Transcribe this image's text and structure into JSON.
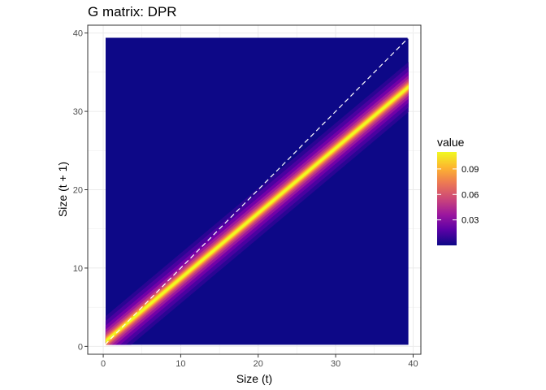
{
  "chart_data": {
    "type": "heatmap",
    "title": "G matrix: DPR",
    "xlabel": "Size (t)",
    "ylabel": "Size (t + 1)",
    "xlim": [
      -2,
      41
    ],
    "ylim": [
      -1,
      41
    ],
    "x_ticks": [
      0,
      10,
      20,
      30,
      40
    ],
    "y_ticks": [
      0,
      10,
      20,
      30,
      40
    ],
    "grid": true,
    "data_extent": {
      "x": [
        0.3,
        39.4
      ],
      "y": [
        0.2,
        39.4
      ]
    },
    "kernel": {
      "description": "growth kernel: mean size(t+1) as linear function of size(t)",
      "mean_intercept": 0.4,
      "mean_slope": 0.83,
      "peak_value": 0.11
    },
    "reference_line": {
      "type": "identity",
      "style": "dashed",
      "color": "#ffffff"
    },
    "legend": {
      "title": "value",
      "placement": "right",
      "range": [
        0,
        0.11
      ],
      "breaks": [
        0.03,
        0.06,
        0.09
      ],
      "labels": [
        "0.03",
        "0.06",
        "0.09"
      ]
    },
    "colors": {
      "low": "#0d0887",
      "mid": "#cc4778",
      "high": "#f0f921",
      "stops": [
        "#0d0887",
        "#5c01a6",
        "#9c179e",
        "#cc4778",
        "#ed7953",
        "#fdb42f",
        "#f0f921"
      ]
    }
  }
}
